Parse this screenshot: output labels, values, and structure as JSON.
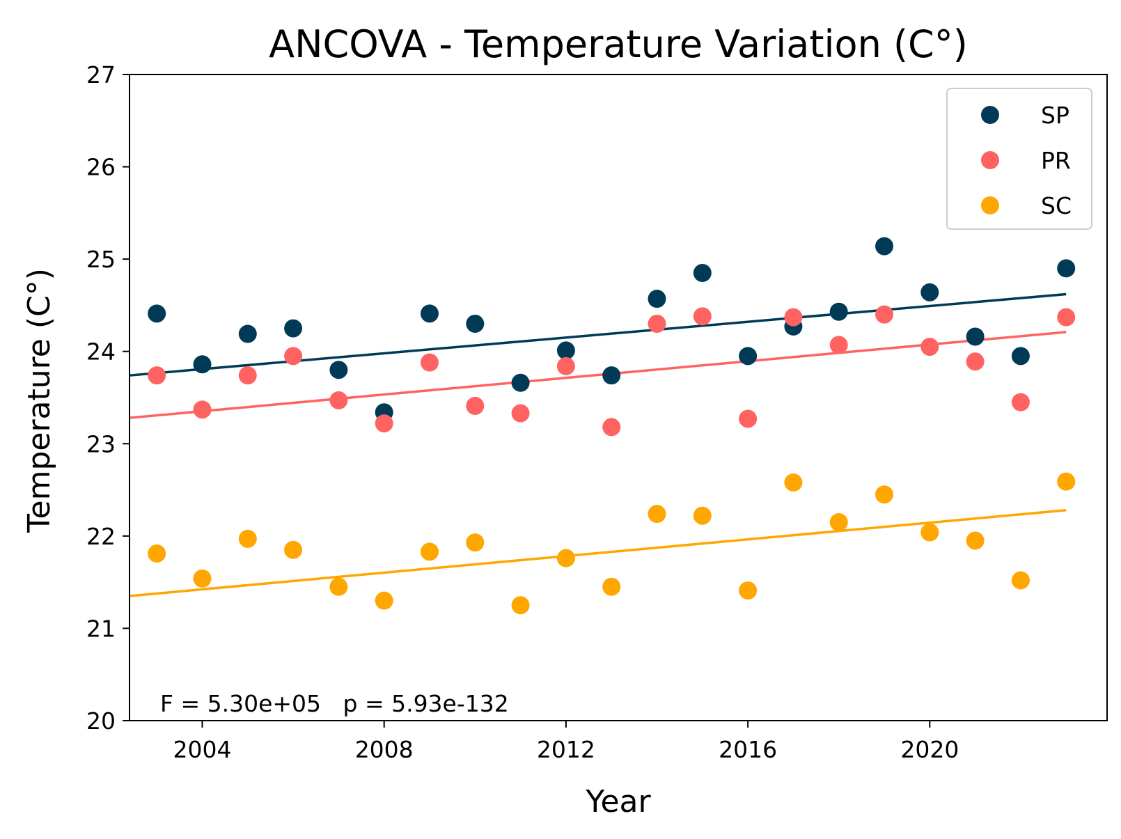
{
  "chart_data": {
    "type": "scatter",
    "title": "ANCOVA - Temperature Variation (C°)",
    "xlabel": "Year",
    "ylabel": "Temperature (C°)",
    "xlim": [
      2002.4,
      2023.9
    ],
    "ylim": [
      20,
      27
    ],
    "xticks": [
      2004,
      2008,
      2012,
      2016,
      2020
    ],
    "yticks": [
      20,
      21,
      22,
      23,
      24,
      25,
      26,
      27
    ],
    "grid": false,
    "legend_position": "top-right",
    "annotation": "F = 5.30e+05   p = 5.93e-132",
    "x": [
      2003,
      2004,
      2005,
      2006,
      2007,
      2008,
      2009,
      2010,
      2011,
      2012,
      2013,
      2014,
      2015,
      2016,
      2017,
      2018,
      2019,
      2020,
      2021,
      2022,
      2023
    ],
    "series": [
      {
        "name": "SP",
        "color": "#003a57",
        "values": [
          24.41,
          23.86,
          24.19,
          24.25,
          23.8,
          23.34,
          24.41,
          24.3,
          23.66,
          24.01,
          23.74,
          24.57,
          24.85,
          23.95,
          24.27,
          24.43,
          25.14,
          24.64,
          24.16,
          23.95,
          24.9
        ],
        "trend": [
          [
            2002.4,
            23.74
          ],
          [
            2023,
            24.62
          ]
        ]
      },
      {
        "name": "PR",
        "color": "#ff6361",
        "values": [
          23.74,
          23.37,
          23.74,
          23.95,
          23.47,
          23.22,
          23.88,
          23.41,
          23.33,
          23.84,
          23.18,
          24.3,
          24.38,
          23.27,
          24.37,
          24.07,
          24.4,
          24.05,
          23.89,
          23.45,
          24.37
        ],
        "trend": [
          [
            2002.4,
            23.28
          ],
          [
            2023,
            24.21
          ]
        ]
      },
      {
        "name": "SC",
        "color": "#ffa600",
        "values": [
          21.81,
          21.54,
          21.97,
          21.85,
          21.45,
          21.3,
          21.83,
          21.93,
          21.25,
          21.76,
          21.45,
          22.24,
          22.22,
          21.41,
          22.58,
          22.15,
          22.45,
          22.04,
          21.95,
          21.52,
          22.59
        ],
        "trend": [
          [
            2002.4,
            21.35
          ],
          [
            2023,
            22.28
          ]
        ]
      }
    ]
  }
}
